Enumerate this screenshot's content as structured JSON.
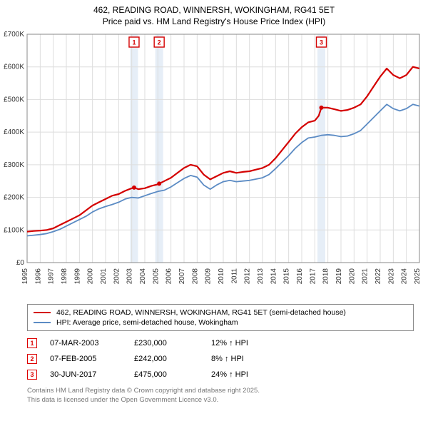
{
  "title": {
    "line1": "462, READING ROAD, WINNERSH, WOKINGHAM, RG41 5ET",
    "line2": "Price paid vs. HM Land Registry's House Price Index (HPI)"
  },
  "chart": {
    "type": "line",
    "background_color": "#ffffff",
    "grid_color": "#dddddd",
    "axis_color": "#888888",
    "band_color": "#e6eef7",
    "series1_color": "#d40000",
    "series2_color": "#5b8bc4",
    "marker_border_color": "#d40000",
    "title_fontsize": 12,
    "tick_fontsize": 10,
    "line_width_s1": 2.2,
    "line_width_s2": 1.8,
    "ylim": [
      0,
      700000
    ],
    "ytick_step": 100000,
    "ytick_labels": [
      "£0",
      "£100K",
      "£200K",
      "£300K",
      "£400K",
      "£500K",
      "£600K",
      "£700K"
    ],
    "xlim": [
      1995,
      2025
    ],
    "xtick_step": 1,
    "xtick_labels": [
      "1995",
      "1996",
      "1997",
      "1998",
      "1999",
      "2000",
      "2001",
      "2002",
      "2003",
      "2004",
      "2005",
      "2006",
      "2007",
      "2008",
      "2009",
      "2010",
      "2011",
      "2012",
      "2013",
      "2014",
      "2015",
      "2016",
      "2017",
      "2018",
      "2019",
      "2020",
      "2021",
      "2022",
      "2023",
      "2024",
      "2025"
    ],
    "series1": {
      "name": "462, READING ROAD, WINNERSH, WOKINGHAM, RG41 5ET (semi-detached house)",
      "points": [
        [
          1995.0,
          95000
        ],
        [
          1995.5,
          97000
        ],
        [
          1996.0,
          98000
        ],
        [
          1996.5,
          100000
        ],
        [
          1997.0,
          105000
        ],
        [
          1997.5,
          115000
        ],
        [
          1998.0,
          125000
        ],
        [
          1998.5,
          135000
        ],
        [
          1999.0,
          145000
        ],
        [
          1999.5,
          160000
        ],
        [
          2000.0,
          175000
        ],
        [
          2000.5,
          185000
        ],
        [
          2001.0,
          195000
        ],
        [
          2001.5,
          205000
        ],
        [
          2002.0,
          210000
        ],
        [
          2002.5,
          220000
        ],
        [
          2003.0,
          228000
        ],
        [
          2003.2,
          230000
        ],
        [
          2003.5,
          225000
        ],
        [
          2004.0,
          228000
        ],
        [
          2004.5,
          235000
        ],
        [
          2005.0,
          240000
        ],
        [
          2005.1,
          242000
        ],
        [
          2005.5,
          250000
        ],
        [
          2006.0,
          260000
        ],
        [
          2006.5,
          275000
        ],
        [
          2007.0,
          290000
        ],
        [
          2007.5,
          300000
        ],
        [
          2008.0,
          295000
        ],
        [
          2008.5,
          270000
        ],
        [
          2009.0,
          255000
        ],
        [
          2009.5,
          265000
        ],
        [
          2010.0,
          275000
        ],
        [
          2010.5,
          280000
        ],
        [
          2011.0,
          275000
        ],
        [
          2011.5,
          278000
        ],
        [
          2012.0,
          280000
        ],
        [
          2012.5,
          285000
        ],
        [
          2013.0,
          290000
        ],
        [
          2013.5,
          300000
        ],
        [
          2014.0,
          320000
        ],
        [
          2014.5,
          345000
        ],
        [
          2015.0,
          370000
        ],
        [
          2015.5,
          395000
        ],
        [
          2016.0,
          415000
        ],
        [
          2016.5,
          430000
        ],
        [
          2017.0,
          435000
        ],
        [
          2017.3,
          450000
        ],
        [
          2017.5,
          475000
        ],
        [
          2018.0,
          475000
        ],
        [
          2018.5,
          470000
        ],
        [
          2019.0,
          465000
        ],
        [
          2019.5,
          468000
        ],
        [
          2020.0,
          475000
        ],
        [
          2020.5,
          485000
        ],
        [
          2021.0,
          510000
        ],
        [
          2021.5,
          540000
        ],
        [
          2022.0,
          570000
        ],
        [
          2022.5,
          595000
        ],
        [
          2023.0,
          575000
        ],
        [
          2023.5,
          565000
        ],
        [
          2024.0,
          575000
        ],
        [
          2024.5,
          600000
        ],
        [
          2025.0,
          595000
        ]
      ]
    },
    "series2": {
      "name": "HPI: Average price, semi-detached house, Wokingham",
      "points": [
        [
          1995.0,
          82000
        ],
        [
          1995.5,
          84000
        ],
        [
          1996.0,
          86000
        ],
        [
          1996.5,
          89000
        ],
        [
          1997.0,
          95000
        ],
        [
          1997.5,
          102000
        ],
        [
          1998.0,
          112000
        ],
        [
          1998.5,
          122000
        ],
        [
          1999.0,
          132000
        ],
        [
          1999.5,
          142000
        ],
        [
          2000.0,
          155000
        ],
        [
          2000.5,
          165000
        ],
        [
          2001.0,
          172000
        ],
        [
          2001.5,
          178000
        ],
        [
          2002.0,
          185000
        ],
        [
          2002.5,
          195000
        ],
        [
          2003.0,
          200000
        ],
        [
          2003.5,
          198000
        ],
        [
          2004.0,
          205000
        ],
        [
          2004.5,
          212000
        ],
        [
          2005.0,
          218000
        ],
        [
          2005.5,
          222000
        ],
        [
          2006.0,
          232000
        ],
        [
          2006.5,
          245000
        ],
        [
          2007.0,
          258000
        ],
        [
          2007.5,
          267000
        ],
        [
          2008.0,
          262000
        ],
        [
          2008.5,
          238000
        ],
        [
          2009.0,
          225000
        ],
        [
          2009.5,
          238000
        ],
        [
          2010.0,
          248000
        ],
        [
          2010.5,
          252000
        ],
        [
          2011.0,
          248000
        ],
        [
          2011.5,
          250000
        ],
        [
          2012.0,
          252000
        ],
        [
          2012.5,
          256000
        ],
        [
          2013.0,
          260000
        ],
        [
          2013.5,
          270000
        ],
        [
          2014.0,
          288000
        ],
        [
          2014.5,
          308000
        ],
        [
          2015.0,
          328000
        ],
        [
          2015.5,
          350000
        ],
        [
          2016.0,
          368000
        ],
        [
          2016.5,
          382000
        ],
        [
          2017.0,
          385000
        ],
        [
          2017.5,
          390000
        ],
        [
          2018.0,
          392000
        ],
        [
          2018.5,
          390000
        ],
        [
          2019.0,
          386000
        ],
        [
          2019.5,
          388000
        ],
        [
          2020.0,
          395000
        ],
        [
          2020.5,
          405000
        ],
        [
          2021.0,
          425000
        ],
        [
          2021.5,
          445000
        ],
        [
          2022.0,
          465000
        ],
        [
          2022.5,
          485000
        ],
        [
          2023.0,
          472000
        ],
        [
          2023.5,
          465000
        ],
        [
          2024.0,
          472000
        ],
        [
          2024.5,
          485000
        ],
        [
          2025.0,
          480000
        ]
      ]
    },
    "markers": [
      {
        "n": "1",
        "x": 2003.18,
        "y": 230000
      },
      {
        "n": "2",
        "x": 2005.1,
        "y": 242000
      },
      {
        "n": "3",
        "x": 2017.5,
        "y": 475000
      }
    ]
  },
  "legend": {
    "item1": "462, READING ROAD, WINNERSH, WOKINGHAM, RG41 5ET (semi-detached house)",
    "item2": "HPI: Average price, semi-detached house, Wokingham"
  },
  "transactions": [
    {
      "n": "1",
      "date": "07-MAR-2003",
      "price": "£230,000",
      "pct": "12% ↑ HPI"
    },
    {
      "n": "2",
      "date": "07-FEB-2005",
      "price": "£242,000",
      "pct": "8% ↑ HPI"
    },
    {
      "n": "3",
      "date": "30-JUN-2017",
      "price": "£475,000",
      "pct": "24% ↑ HPI"
    }
  ],
  "footer": {
    "line1": "Contains HM Land Registry data © Crown copyright and database right 2025.",
    "line2": "This data is licensed under the Open Government Licence v3.0."
  }
}
